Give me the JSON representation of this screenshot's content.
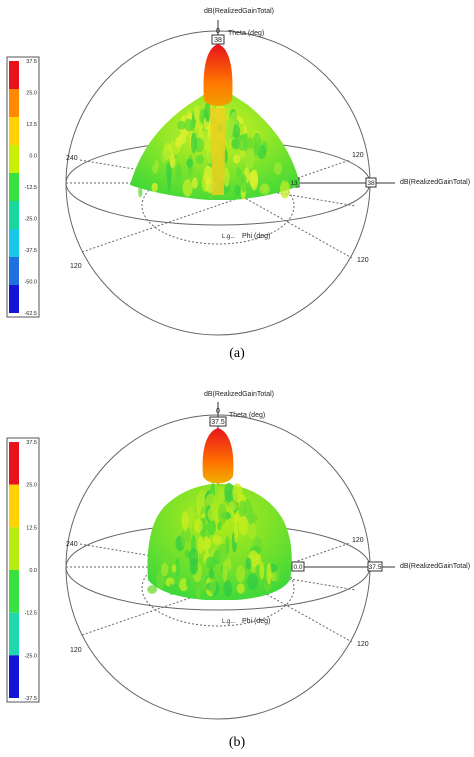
{
  "panels": [
    {
      "caption": "(a)",
      "quantity_label": "dB(RealizedGainTotal)",
      "theta_label": "Theta (deg)",
      "theta_zero": "0",
      "theta_value": "38",
      "phi_label": "Phi (deg)",
      "phi_prefix": "L.g...",
      "ring_label_left": "240",
      "ring_label_right": "120",
      "outer_label_left": "120",
      "outer_label_right": "120",
      "axis_inner_value": "13",
      "axis_outer_value": "38",
      "axis_quantity_label": "dB(RealizedGainTotal)",
      "colorbar_ticks": [
        "37.5",
        "25.0",
        "12.5",
        "0.0",
        "-12.5",
        "-25.0",
        "-37.5",
        "-50.0",
        "-62.5"
      ],
      "colorbar_colors": [
        "#e8121c",
        "#ff8a00",
        "#ffd200",
        "#c8f000",
        "#38e040",
        "#18d8a0",
        "#18c8e8",
        "#2070e0",
        "#1414d8"
      ]
    },
    {
      "caption": "(b)",
      "quantity_label": "dB(RealizedGainTotal)",
      "theta_label": "Theta (deg)",
      "theta_zero": "0",
      "theta_value": "37.5",
      "phi_label": "Phi (deg)",
      "phi_prefix": "L.g...",
      "ring_label_left": "240",
      "ring_label_right": "120",
      "outer_label_left": "120",
      "outer_label_right": "120",
      "axis_inner_value": "0.0",
      "axis_outer_value": "37.5",
      "axis_quantity_label": "dB(RealizedGainTotal)",
      "colorbar_ticks": [
        "37.5",
        "25.0",
        "12.5",
        "0.0",
        "-12.5",
        "-25.0",
        "-37.5"
      ],
      "colorbar_colors": [
        "#e8121c",
        "#ffd200",
        "#b8ec10",
        "#38e040",
        "#20d8b0",
        "#1414d8"
      ]
    }
  ]
}
